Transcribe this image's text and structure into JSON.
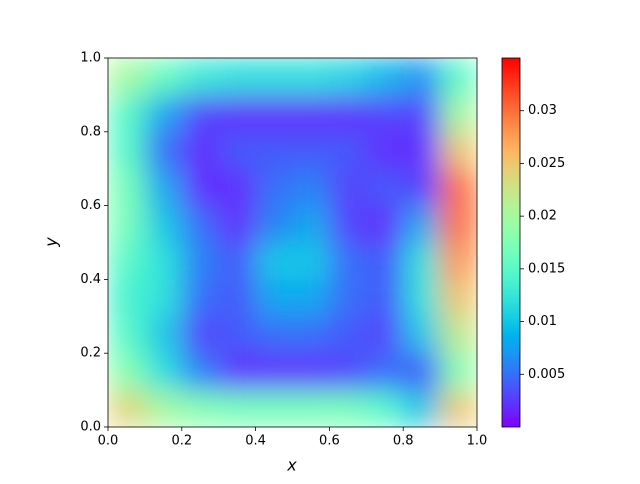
{
  "chart_data": {
    "type": "heatmap",
    "xlabel": "x",
    "ylabel": "y",
    "xlim": [
      0,
      1
    ],
    "ylim": [
      0,
      1
    ],
    "xticks": [
      {
        "value": 0,
        "label": "0.0"
      },
      0.2,
      0.4,
      0.6,
      0.8,
      {
        "value": 1,
        "label": "1.0"
      }
    ],
    "yticks": [
      {
        "value": 0,
        "label": "0.0"
      },
      0.2,
      0.4,
      0.6,
      0.8,
      {
        "value": 1,
        "label": "1.0"
      }
    ],
    "colormap": "rainbow",
    "clim": [
      0,
      0.035
    ],
    "cticks": [
      0.005,
      0.01,
      0.015,
      0.02,
      0.025,
      0.03
    ],
    "z": [
      [
        0.024,
        0.02,
        0.018,
        0.017,
        0.017,
        0.017,
        0.017,
        0.015,
        0.01,
        0.025
      ],
      [
        0.018,
        0.012,
        0.006,
        0.002,
        0.002,
        0.002,
        0.003,
        0.005,
        0.004,
        0.018
      ],
      [
        0.015,
        0.01,
        0.003,
        0.004,
        0.005,
        0.005,
        0.004,
        0.003,
        0.01,
        0.022
      ],
      [
        0.014,
        0.012,
        0.005,
        0.004,
        0.008,
        0.008,
        0.005,
        0.004,
        0.012,
        0.025
      ],
      [
        0.015,
        0.012,
        0.006,
        0.004,
        0.01,
        0.01,
        0.005,
        0.004,
        0.012,
        0.028
      ],
      [
        0.017,
        0.01,
        0.005,
        0.002,
        0.006,
        0.008,
        0.003,
        0.002,
        0.008,
        0.03
      ],
      [
        0.017,
        0.008,
        0.002,
        0.002,
        0.005,
        0.006,
        0.003,
        0.004,
        0.003,
        0.03
      ],
      [
        0.015,
        0.005,
        0.002,
        0.004,
        0.004,
        0.004,
        0.004,
        0.002,
        0.002,
        0.025
      ],
      [
        0.015,
        0.008,
        0.003,
        0.002,
        0.002,
        0.002,
        0.002,
        0.003,
        0.003,
        0.02
      ],
      [
        0.02,
        0.016,
        0.013,
        0.012,
        0.012,
        0.012,
        0.011,
        0.009,
        0.007,
        0.015
      ]
    ]
  }
}
